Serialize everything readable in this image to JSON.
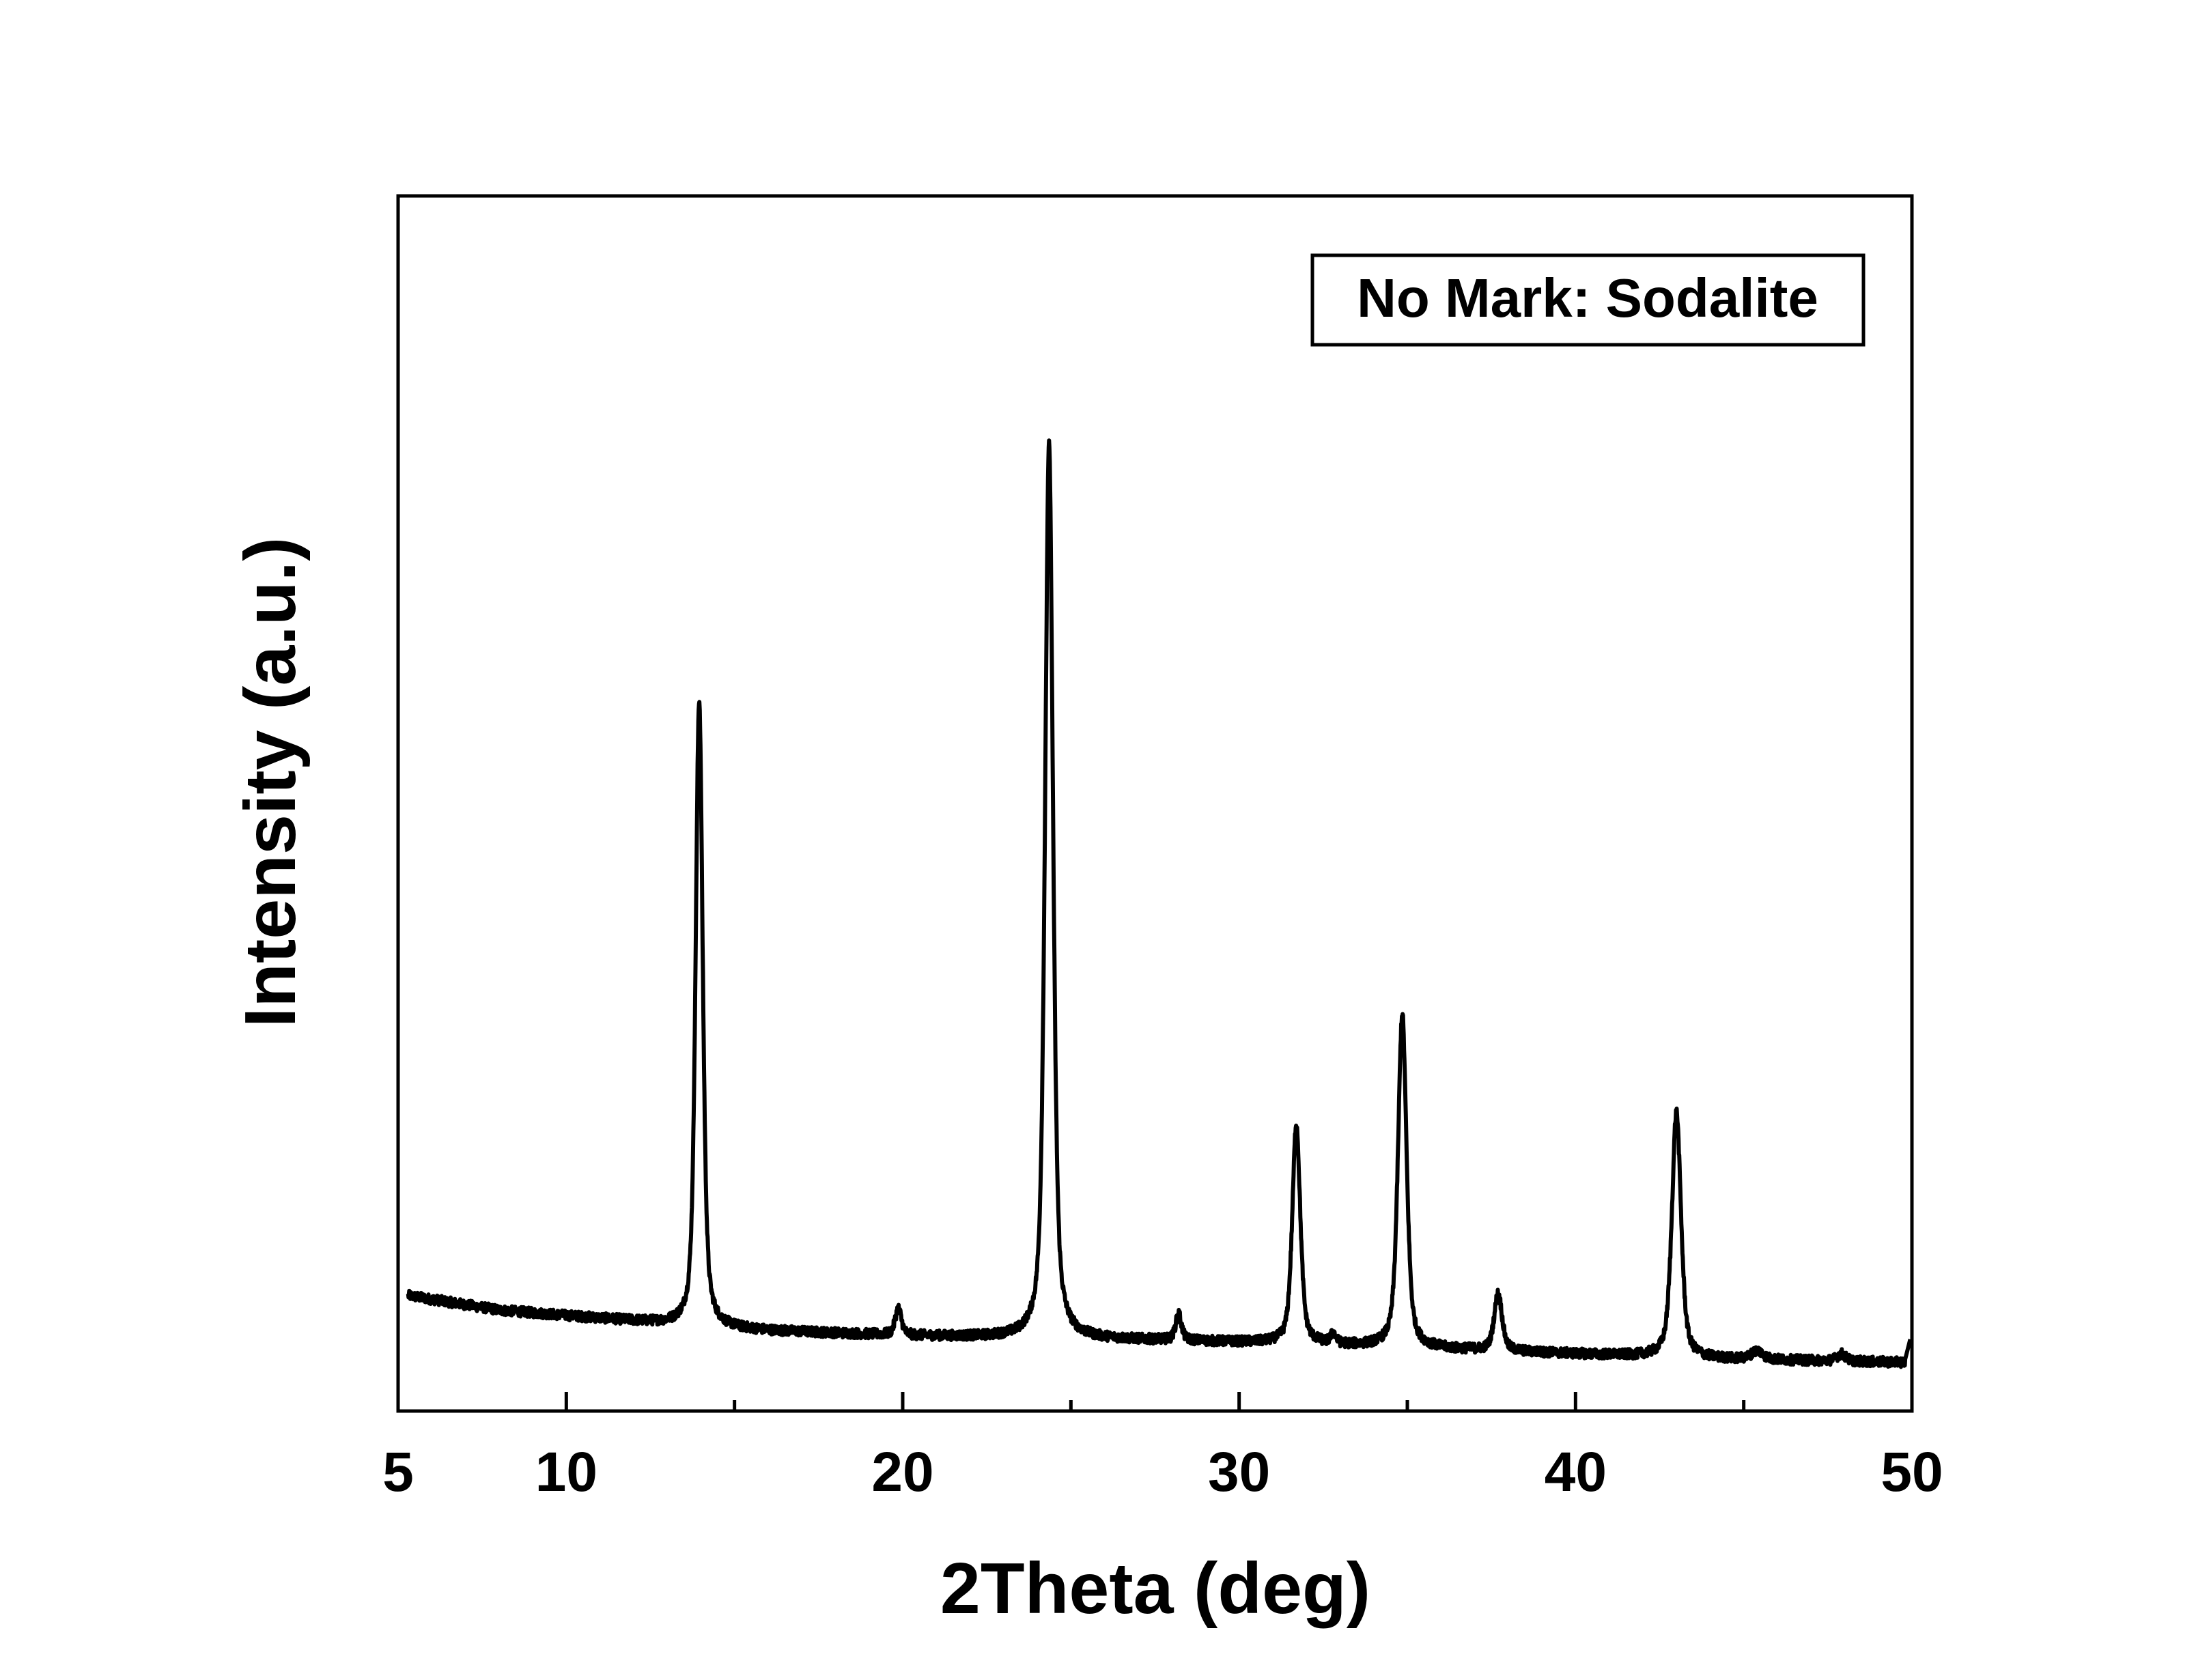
{
  "chart_data": {
    "type": "line",
    "title": "",
    "xlabel": "2Theta (deg)",
    "ylabel": "Intensity (a.u.)",
    "xlim": [
      5,
      50
    ],
    "ylim": [
      0,
      100
    ],
    "x_ticks": [
      5,
      10,
      20,
      30,
      40,
      50
    ],
    "x_tick_labels": [
      "5",
      "10",
      "20",
      "30",
      "40",
      "50"
    ],
    "y_tick_labels": [],
    "grid": false,
    "legend_text": "No Mark: Sodalite",
    "legend_position": "top-right",
    "line_color": "#000000",
    "baseline": [
      [
        5.3,
        9.5
      ],
      [
        8,
        8.3
      ],
      [
        12,
        7.4
      ],
      [
        14,
        6.9
      ],
      [
        16,
        6.6
      ],
      [
        20,
        6.2
      ],
      [
        24,
        6.0
      ],
      [
        28,
        5.8
      ],
      [
        32,
        5.5
      ],
      [
        36,
        5.1
      ],
      [
        40,
        4.7
      ],
      [
        44,
        4.3
      ],
      [
        49.8,
        4.0
      ]
    ],
    "peaks": [
      {
        "x": 13.95,
        "height": 51.6,
        "fwhm": 0.25
      },
      {
        "x": 19.87,
        "height": 2.2,
        "fwhm": 0.22
      },
      {
        "x": 24.35,
        "height": 73.5,
        "fwhm": 0.28
      },
      {
        "x": 28.2,
        "height": 2.2,
        "fwhm": 0.2
      },
      {
        "x": 31.7,
        "height": 18.1,
        "fwhm": 0.28
      },
      {
        "x": 32.8,
        "height": 0.8,
        "fwhm": 0.18
      },
      {
        "x": 34.85,
        "height": 27.4,
        "fwhm": 0.3
      },
      {
        "x": 37.7,
        "height": 4.7,
        "fwhm": 0.28
      },
      {
        "x": 43.0,
        "height": 20.2,
        "fwhm": 0.32
      },
      {
        "x": 45.4,
        "height": 0.7,
        "fwhm": 0.4
      },
      {
        "x": 47.9,
        "height": 0.6,
        "fwhm": 0.3
      }
    ]
  }
}
